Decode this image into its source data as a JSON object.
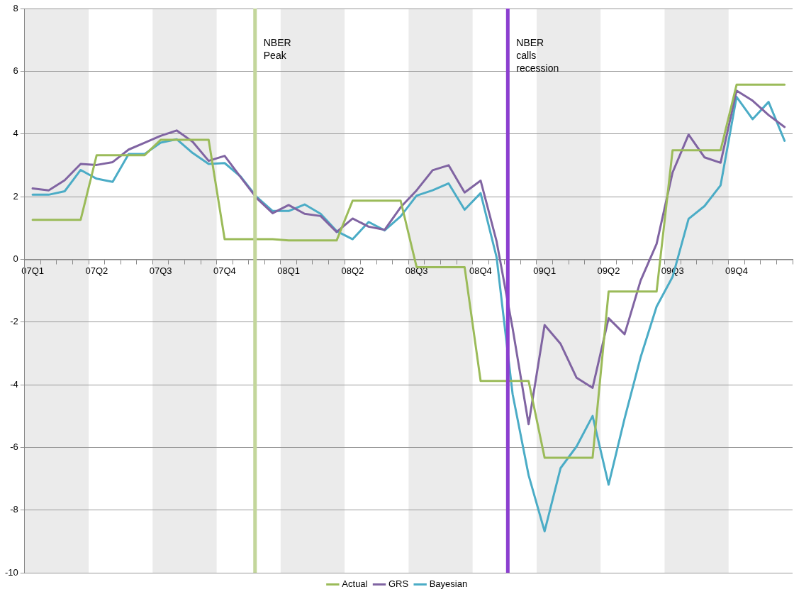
{
  "chart_data": {
    "type": "line",
    "categories": [
      "07Q1",
      null,
      null,
      null,
      "07Q2",
      null,
      null,
      null,
      "07Q3",
      null,
      null,
      null,
      "07Q4",
      null,
      null,
      null,
      "08Q1",
      null,
      null,
      null,
      "08Q2",
      null,
      null,
      null,
      "08Q3",
      null,
      null,
      null,
      "08Q4",
      null,
      null,
      null,
      "09Q1",
      null,
      null,
      null,
      "09Q2",
      null,
      null,
      null,
      "09Q3",
      null,
      null,
      null,
      "09Q4",
      null,
      null,
      null
    ],
    "ylim": [
      -10,
      8
    ],
    "yticks": [
      -10,
      -8,
      -6,
      -4,
      -2,
      0,
      2,
      4,
      6,
      8
    ],
    "grid": "y",
    "legend": "bottom",
    "marker": "none",
    "line_style": "solid",
    "series": [
      {
        "name": "Actual",
        "color": "#9bbb59",
        "values": [
          1.26,
          1.26,
          1.26,
          1.26,
          3.32,
          3.32,
          3.32,
          3.32,
          3.81,
          3.81,
          3.81,
          3.81,
          0.64,
          0.64,
          0.64,
          0.64,
          0.6,
          0.6,
          0.6,
          0.6,
          1.87,
          1.87,
          1.87,
          1.87,
          -0.25,
          -0.25,
          -0.25,
          -0.25,
          -3.88,
          -3.88,
          -3.88,
          -3.88,
          -6.33,
          -6.33,
          -6.33,
          -6.33,
          -1.03,
          -1.03,
          -1.03,
          -1.03,
          3.48,
          3.48,
          3.48,
          3.48,
          5.57,
          5.57,
          5.57,
          5.57
        ]
      },
      {
        "name": "GRS",
        "color": "#8064a2",
        "values": [
          2.26,
          2.2,
          2.52,
          3.04,
          3.01,
          3.1,
          3.5,
          3.72,
          3.94,
          4.11,
          3.75,
          3.14,
          3.3,
          2.62,
          1.95,
          1.47,
          1.73,
          1.45,
          1.38,
          0.87,
          1.3,
          1.04,
          0.94,
          1.66,
          2.2,
          2.84,
          3.0,
          2.13,
          2.51,
          0.57,
          -2.2,
          -5.26,
          -2.1,
          -2.7,
          -3.78,
          -4.1,
          -1.88,
          -2.39,
          -0.68,
          0.49,
          2.77,
          3.98,
          3.25,
          3.08,
          5.38,
          5.06,
          4.6,
          4.22
        ]
      },
      {
        "name": "Bayesian",
        "color": "#4bacc6",
        "values": [
          2.06,
          2.06,
          2.17,
          2.85,
          2.57,
          2.47,
          3.36,
          3.36,
          3.72,
          3.83,
          3.39,
          3.04,
          3.07,
          2.64,
          1.99,
          1.54,
          1.54,
          1.75,
          1.45,
          0.9,
          0.64,
          1.19,
          0.92,
          1.37,
          2.03,
          2.2,
          2.42,
          1.58,
          2.11,
          0.06,
          -4.3,
          -6.89,
          -8.68,
          -6.66,
          -5.97,
          -5.0,
          -7.19,
          -5.08,
          -3.13,
          -1.51,
          -0.56,
          1.29,
          1.7,
          2.36,
          5.18,
          4.47,
          5.02,
          3.78
        ]
      }
    ],
    "annotations": [
      "NBER Peak",
      "NBER calls recession"
    ]
  }
}
